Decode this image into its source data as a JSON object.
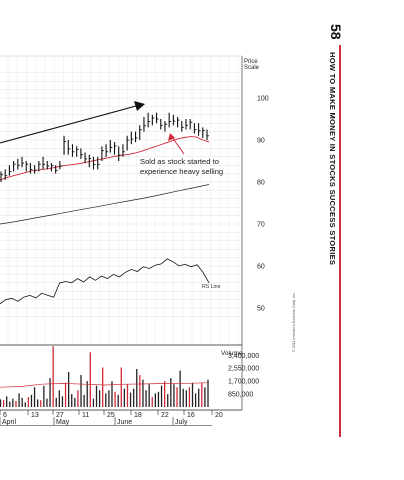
{
  "page": {
    "number": "58",
    "running_head": "HOW TO MAKE MONEY IN STOCKS SUCCESS STORIES",
    "credit": "© 2011 Investor's Business Daily, Inc.",
    "accent_color": "#cf2a36"
  },
  "chart_data": {
    "type": "candlestick",
    "price_scale_label": [
      "Price",
      "Scale"
    ],
    "price_ticks": [
      100,
      90,
      80,
      70,
      60,
      50
    ],
    "price_range": [
      45,
      107
    ],
    "annotation": [
      "Sold as stock started to",
      "experience heavy selling"
    ],
    "rs_line_label": "RS Line",
    "volume_label": "Volume",
    "volume_ticks": [
      "3,400,000",
      "2,550,000",
      "1,700,000",
      "850,000"
    ],
    "volume_tick_values": [
      3400000,
      2550000,
      1700000,
      850000
    ],
    "date_ticks": [
      "6",
      "13",
      "27",
      "11",
      "25",
      "18",
      "22",
      "16",
      "20"
    ],
    "month_labels": [
      "April",
      "May",
      "June",
      "July"
    ],
    "price_bars": [
      {
        "h": 82.5,
        "l": 80.0
      },
      {
        "h": 83.0,
        "l": 80.5
      },
      {
        "h": 84.0,
        "l": 81.5
      },
      {
        "h": 85.0,
        "l": 82.5
      },
      {
        "h": 85.5,
        "l": 83.0
      },
      {
        "h": 86.0,
        "l": 83.5
      },
      {
        "h": 85.0,
        "l": 82.5
      },
      {
        "h": 84.5,
        "l": 82.0
      },
      {
        "h": 84.0,
        "l": 82.0
      },
      {
        "h": 85.0,
        "l": 82.5
      },
      {
        "h": 86.0,
        "l": 83.0
      },
      {
        "h": 85.0,
        "l": 83.0
      },
      {
        "h": 84.5,
        "l": 82.5
      },
      {
        "h": 84.0,
        "l": 82.0
      },
      {
        "h": 85.0,
        "l": 83.0
      },
      {
        "h": 91.0,
        "l": 86.5
      },
      {
        "h": 90.0,
        "l": 86.5
      },
      {
        "h": 89.0,
        "l": 86.0
      },
      {
        "h": 88.5,
        "l": 86.0
      },
      {
        "h": 88.0,
        "l": 85.5
      },
      {
        "h": 87.0,
        "l": 84.5
      },
      {
        "h": 86.5,
        "l": 83.5
      },
      {
        "h": 86.0,
        "l": 83.0
      },
      {
        "h": 86.0,
        "l": 83.0
      },
      {
        "h": 88.5,
        "l": 85.0
      },
      {
        "h": 89.0,
        "l": 86.0
      },
      {
        "h": 90.0,
        "l": 87.0
      },
      {
        "h": 89.5,
        "l": 86.5
      },
      {
        "h": 88.5,
        "l": 85.0
      },
      {
        "h": 89.0,
        "l": 86.0
      },
      {
        "h": 91.0,
        "l": 87.5
      },
      {
        "h": 92.0,
        "l": 89.0
      },
      {
        "h": 92.0,
        "l": 89.5
      },
      {
        "h": 93.5,
        "l": 90.0
      },
      {
        "h": 95.5,
        "l": 92.0
      },
      {
        "h": 96.5,
        "l": 93.0
      },
      {
        "h": 96.0,
        "l": 93.5
      },
      {
        "h": 96.5,
        "l": 94.0
      },
      {
        "h": 95.0,
        "l": 92.5
      },
      {
        "h": 94.5,
        "l": 92.0
      },
      {
        "h": 96.5,
        "l": 93.0
      },
      {
        "h": 96.0,
        "l": 93.5
      },
      {
        "h": 95.5,
        "l": 93.0
      },
      {
        "h": 94.5,
        "l": 92.0
      },
      {
        "h": 95.0,
        "l": 92.5
      },
      {
        "h": 95.0,
        "l": 92.5
      },
      {
        "h": 94.0,
        "l": 91.5
      },
      {
        "h": 94.0,
        "l": 91.0
      },
      {
        "h": 93.0,
        "l": 90.5
      },
      {
        "h": 92.5,
        "l": 90.0
      }
    ],
    "moving_avg_50": [
      80.5,
      81.0,
      81.4,
      81.8,
      82.2,
      82.6,
      82.8,
      83.0,
      83.2,
      83.5,
      83.8,
      84.0,
      84.2,
      84.4,
      84.7,
      85.0,
      85.3,
      85.6,
      85.9,
      86.2,
      86.4,
      86.6,
      86.9,
      87.3,
      87.8,
      88.3,
      88.8,
      89.3,
      89.8,
      90.3,
      90.6,
      90.8,
      90.7,
      90.0,
      89.5
    ],
    "moving_avg_200": [
      70.0,
      70.6,
      71.3,
      72.0,
      72.7,
      73.4,
      74.1,
      74.8,
      75.5,
      76.2,
      77.0,
      77.8,
      78.6,
      79.4
    ],
    "rs_line": [
      51.0,
      52.0,
      52.3,
      51.6,
      52.6,
      53.0,
      52.4,
      53.5,
      53.0,
      52.6,
      56.0,
      56.3,
      56.0,
      57.0,
      56.2,
      57.4,
      56.6,
      57.6,
      57.0,
      58.0,
      57.4,
      58.5,
      59.2,
      58.7,
      59.8,
      59.4,
      60.2,
      60.5,
      61.7,
      61.0,
      60.0,
      60.4,
      59.8,
      60.3,
      58.5,
      56.0
    ],
    "volume": [
      500000,
      450000,
      700000,
      350000,
      550000,
      400000,
      900000,
      600000,
      300000,
      650000,
      800000,
      1300000,
      500000,
      450000,
      1400000,
      550000,
      1900000,
      4000000,
      600000,
      1100000,
      700000,
      1600000,
      2300000,
      850000,
      600000,
      1100000,
      2100000,
      800000,
      1700000,
      3600000,
      550000,
      1400000,
      1100000,
      2600000,
      900000,
      1100000,
      1700000,
      1000000,
      800000,
      2600000,
      1200000,
      1500000,
      950000,
      1200000,
      2500000,
      2100000,
      1800000,
      1100000,
      1500000,
      650000,
      900000,
      1000000,
      1400000,
      1700000,
      850000,
      1900000,
      1500000,
      1300000,
      2400000,
      1200000,
      1100000,
      1300000,
      1600000,
      900000,
      1200000,
      1600000,
      1300000,
      1800000
    ],
    "volume_avg": [
      1300000,
      1350000,
      1500000,
      1550000,
      1500000,
      1450000,
      1500000,
      1520000,
      1550000,
      1560000,
      1600000
    ]
  }
}
